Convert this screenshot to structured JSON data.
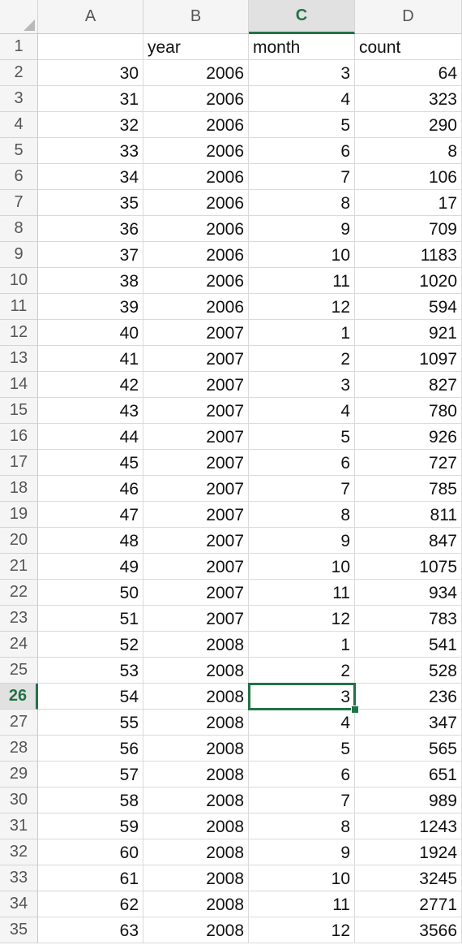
{
  "sheet": {
    "columns": [
      {
        "letter": "A",
        "selected": false
      },
      {
        "letter": "B",
        "selected": false
      },
      {
        "letter": "C",
        "selected": true
      },
      {
        "letter": "D",
        "selected": false
      }
    ],
    "active_cell": {
      "column": "C",
      "row": 26
    },
    "header_row": {
      "number": "1",
      "a": "",
      "b": "year",
      "c": "month",
      "d": "count"
    },
    "rows": [
      {
        "n": "2",
        "a": "30",
        "b": "2006",
        "c": "3",
        "d": "64"
      },
      {
        "n": "3",
        "a": "31",
        "b": "2006",
        "c": "4",
        "d": "323"
      },
      {
        "n": "4",
        "a": "32",
        "b": "2006",
        "c": "5",
        "d": "290"
      },
      {
        "n": "5",
        "a": "33",
        "b": "2006",
        "c": "6",
        "d": "8"
      },
      {
        "n": "6",
        "a": "34",
        "b": "2006",
        "c": "7",
        "d": "106"
      },
      {
        "n": "7",
        "a": "35",
        "b": "2006",
        "c": "8",
        "d": "17"
      },
      {
        "n": "8",
        "a": "36",
        "b": "2006",
        "c": "9",
        "d": "709"
      },
      {
        "n": "9",
        "a": "37",
        "b": "2006",
        "c": "10",
        "d": "1183"
      },
      {
        "n": "10",
        "a": "38",
        "b": "2006",
        "c": "11",
        "d": "1020"
      },
      {
        "n": "11",
        "a": "39",
        "b": "2006",
        "c": "12",
        "d": "594"
      },
      {
        "n": "12",
        "a": "40",
        "b": "2007",
        "c": "1",
        "d": "921"
      },
      {
        "n": "13",
        "a": "41",
        "b": "2007",
        "c": "2",
        "d": "1097"
      },
      {
        "n": "14",
        "a": "42",
        "b": "2007",
        "c": "3",
        "d": "827"
      },
      {
        "n": "15",
        "a": "43",
        "b": "2007",
        "c": "4",
        "d": "780"
      },
      {
        "n": "16",
        "a": "44",
        "b": "2007",
        "c": "5",
        "d": "926"
      },
      {
        "n": "17",
        "a": "45",
        "b": "2007",
        "c": "6",
        "d": "727"
      },
      {
        "n": "18",
        "a": "46",
        "b": "2007",
        "c": "7",
        "d": "785"
      },
      {
        "n": "19",
        "a": "47",
        "b": "2007",
        "c": "8",
        "d": "811"
      },
      {
        "n": "20",
        "a": "48",
        "b": "2007",
        "c": "9",
        "d": "847"
      },
      {
        "n": "21",
        "a": "49",
        "b": "2007",
        "c": "10",
        "d": "1075"
      },
      {
        "n": "22",
        "a": "50",
        "b": "2007",
        "c": "11",
        "d": "934"
      },
      {
        "n": "23",
        "a": "51",
        "b": "2007",
        "c": "12",
        "d": "783"
      },
      {
        "n": "24",
        "a": "52",
        "b": "2008",
        "c": "1",
        "d": "541"
      },
      {
        "n": "25",
        "a": "53",
        "b": "2008",
        "c": "2",
        "d": "528"
      },
      {
        "n": "26",
        "a": "54",
        "b": "2008",
        "c": "3",
        "d": "236"
      },
      {
        "n": "27",
        "a": "55",
        "b": "2008",
        "c": "4",
        "d": "347"
      },
      {
        "n": "28",
        "a": "56",
        "b": "2008",
        "c": "5",
        "d": "565"
      },
      {
        "n": "29",
        "a": "57",
        "b": "2008",
        "c": "6",
        "d": "651"
      },
      {
        "n": "30",
        "a": "58",
        "b": "2008",
        "c": "7",
        "d": "989"
      },
      {
        "n": "31",
        "a": "59",
        "b": "2008",
        "c": "8",
        "d": "1243"
      },
      {
        "n": "32",
        "a": "60",
        "b": "2008",
        "c": "9",
        "d": "1924"
      },
      {
        "n": "33",
        "a": "61",
        "b": "2008",
        "c": "10",
        "d": "3245"
      },
      {
        "n": "34",
        "a": "62",
        "b": "2008",
        "c": "11",
        "d": "2771"
      },
      {
        "n": "35",
        "a": "63",
        "b": "2008",
        "c": "12",
        "d": "3566"
      }
    ]
  },
  "colors": {
    "accent": "#217346"
  }
}
